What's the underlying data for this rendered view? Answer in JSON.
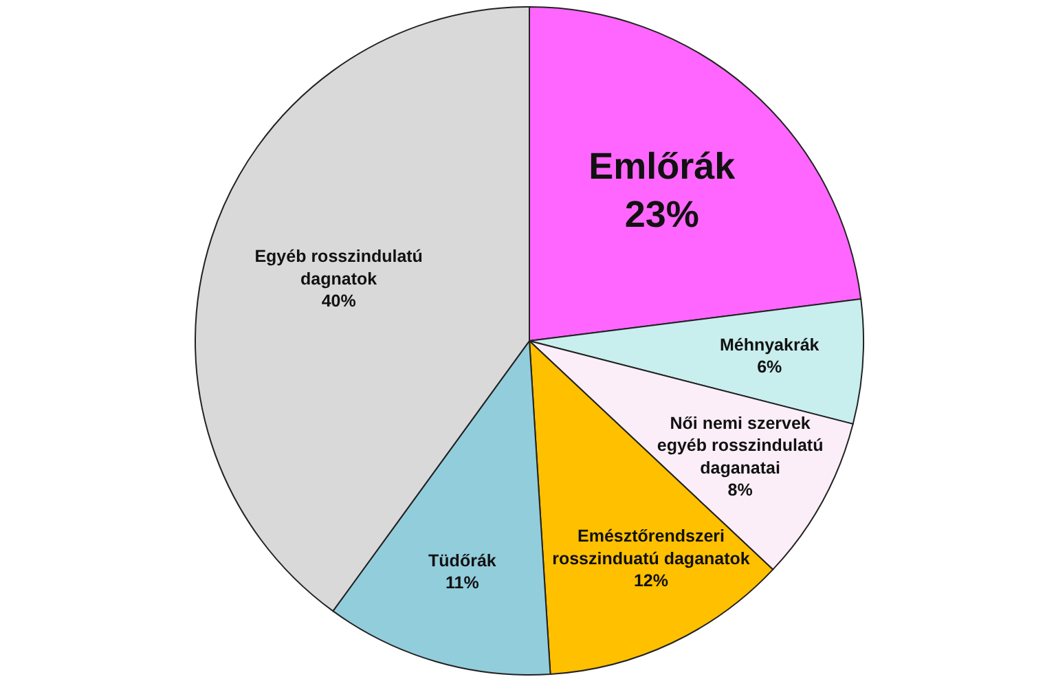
{
  "chart_data": {
    "type": "pie",
    "categories": [
      "Emlőrák",
      "Méhnyakrák",
      "Női nemi szervek egyéb rosszindulatú daganatai",
      "Emésztőrendszeri rosszinduatú daganatok",
      "Tüdőrák",
      "Egyéb rosszindulatú dagnatok"
    ],
    "values": [
      23,
      6,
      8,
      12,
      11,
      40
    ],
    "colors": [
      "#ff66ff",
      "#c8eeee",
      "#fbeef8",
      "#ffc000",
      "#92cddc",
      "#d9d9d9"
    ],
    "value_labels": [
      "23%",
      "6%",
      "8%",
      "12%",
      "11%",
      "40%"
    ]
  }
}
